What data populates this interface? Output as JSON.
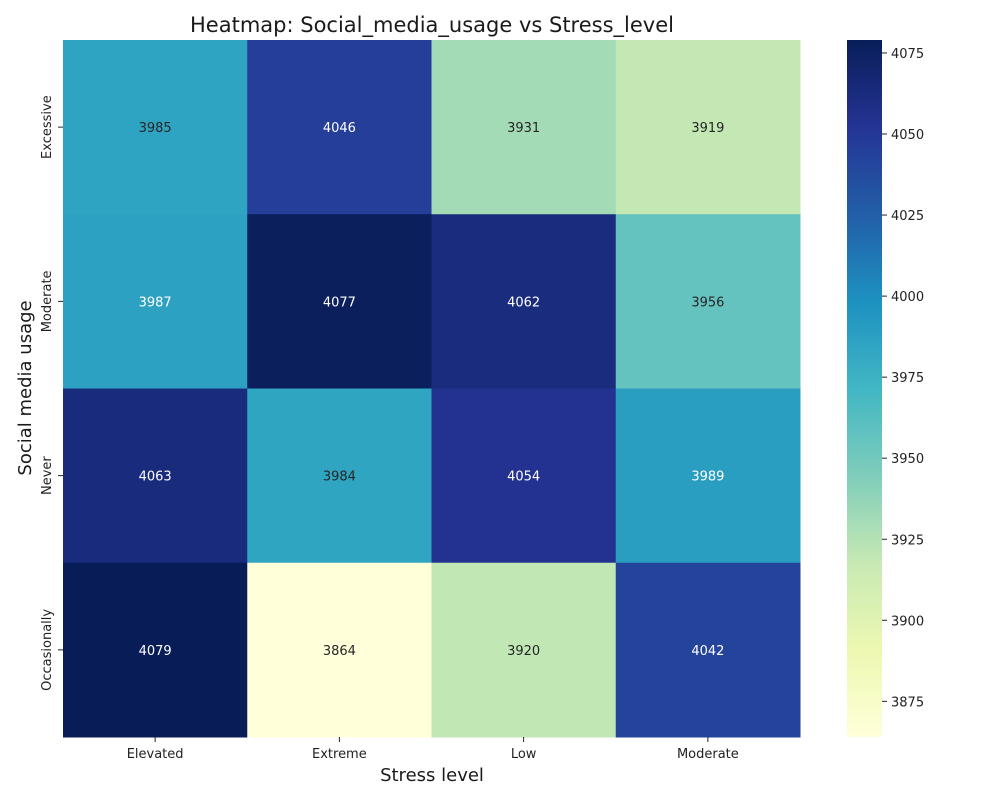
{
  "chart_data": {
    "type": "heatmap",
    "title": "Heatmap: Social_media_usage vs Stress_level",
    "xlabel": "Stress level",
    "ylabel": "Social media usage",
    "x_categories": [
      "Elevated",
      "Extreme",
      "Low",
      "Moderate"
    ],
    "y_categories": [
      "Excessive",
      "Moderate",
      "Never",
      "Occasionally"
    ],
    "values": [
      [
        3985,
        4046,
        3931,
        3919
      ],
      [
        3987,
        4077,
        4062,
        3956
      ],
      [
        4063,
        3984,
        4054,
        3989
      ],
      [
        4079,
        3864,
        3920,
        4042
      ]
    ],
    "colorscale": "YlGnBu",
    "colorbar": {
      "range": [
        3864,
        4079
      ],
      "ticks": [
        3875,
        3900,
        3925,
        3950,
        3975,
        4000,
        4025,
        4050,
        4075
      ]
    },
    "annotations": true
  }
}
